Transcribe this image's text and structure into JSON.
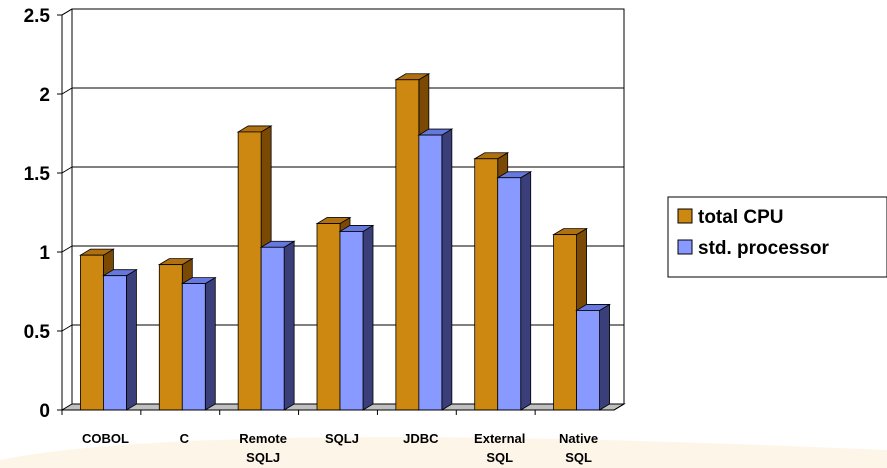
{
  "chart_data": {
    "type": "bar",
    "categories": [
      [
        "COBOL"
      ],
      [
        "C"
      ],
      [
        "Remote",
        "SQLJ"
      ],
      [
        "SQLJ"
      ],
      [
        "JDBC"
      ],
      [
        "External",
        "SQL"
      ],
      [
        "Native",
        "SQL"
      ]
    ],
    "series": [
      {
        "name": "total CPU",
        "values": [
          0.98,
          0.92,
          1.76,
          1.18,
          2.09,
          1.59,
          1.11
        ],
        "color": "#CC8811",
        "side_color": "#7A4A05",
        "top_color": "#B07010"
      },
      {
        "name": "std. processor",
        "values": [
          0.85,
          0.8,
          1.03,
          1.13,
          1.74,
          1.47,
          0.63
        ],
        "color": "#8899FF",
        "side_color": "#3A3F7A",
        "top_color": "#6677DD"
      }
    ],
    "ylim": [
      0,
      2.5
    ],
    "yticks": [
      "0",
      "0.5",
      "1",
      "1.5",
      "2",
      "2.5"
    ],
    "grid": true,
    "legend_position": "right",
    "title": "",
    "xlabel": "",
    "ylabel": ""
  }
}
